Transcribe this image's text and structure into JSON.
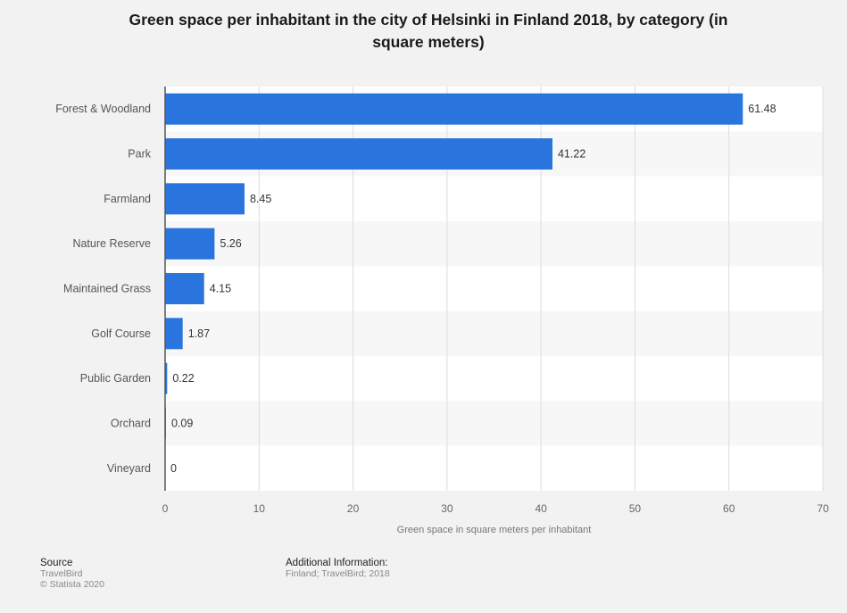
{
  "chart_data": {
    "type": "bar",
    "orientation": "horizontal",
    "title_line1": "Green space per inhabitant in the city of Helsinki in Finland 2018, by category (in",
    "title_line2": "square meters)",
    "categories": [
      "Forest & Woodland",
      "Park",
      "Farmland",
      "Nature Reserve",
      "Maintained Grass",
      "Golf Course",
      "Public Garden",
      "Orchard",
      "Vineyard"
    ],
    "values": [
      61.48,
      41.22,
      8.45,
      5.26,
      4.15,
      1.87,
      0.22,
      0.09,
      0
    ],
    "value_labels": [
      "61.48",
      "41.22",
      "8.45",
      "5.26",
      "4.15",
      "1.87",
      "0.22",
      "0.09",
      "0"
    ],
    "xlabel": "Green space in square meters per inhabitant",
    "xlim": [
      0,
      70
    ],
    "xticks": [
      0,
      10,
      20,
      30,
      40,
      50,
      60,
      70
    ],
    "bar_color": "#2a75dd",
    "grid": true
  },
  "footer": {
    "source_heading": "Source",
    "source_name": "TravelBird",
    "copyright": "© Statista 2020",
    "additional_heading": "Additional Information:",
    "additional_text": "Finland; TravelBird; 2018"
  }
}
